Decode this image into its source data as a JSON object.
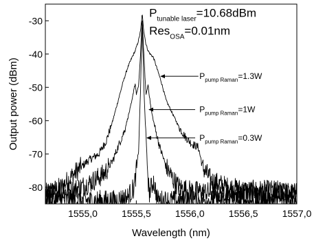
{
  "chart_data": {
    "type": "line",
    "title": "",
    "xlabel": "Wavelength (nm)",
    "ylabel": "Output power (dBm)",
    "xlim": [
      1554.65,
      1557.0
    ],
    "ylim": [
      -85,
      -25
    ],
    "x_ticks": [
      {
        "value": 1555.0,
        "label": "1555,0"
      },
      {
        "value": 1555.5,
        "label": "1555,5"
      },
      {
        "value": 1556.0,
        "label": "1556,0"
      },
      {
        "value": 1556.5,
        "label": "1556,5"
      },
      {
        "value": 1557.0,
        "label": "1557,0"
      }
    ],
    "y_ticks": [
      {
        "value": -30,
        "label": "-30"
      },
      {
        "value": -40,
        "label": "-40"
      },
      {
        "value": -50,
        "label": "-50"
      },
      {
        "value": -60,
        "label": "-60"
      },
      {
        "value": -70,
        "label": "-70"
      },
      {
        "value": -80,
        "label": "-80"
      }
    ],
    "grid": false,
    "series": [
      {
        "name": "P_pump Raman=1.3W",
        "x": [
          1554.65,
          1554.8,
          1554.95,
          1555.05,
          1555.15,
          1555.22,
          1555.28,
          1555.33,
          1555.38,
          1555.42,
          1555.46,
          1555.49,
          1555.52,
          1555.54,
          1555.555,
          1555.57,
          1555.59,
          1555.61,
          1555.63,
          1555.66,
          1555.69,
          1555.73,
          1555.78,
          1555.84,
          1555.9,
          1555.96,
          1556.02,
          1556.08,
          1556.12,
          1556.2,
          1556.35,
          1556.55,
          1556.8,
          1557.0
        ],
        "y": [
          -82,
          -80,
          -75,
          -72,
          -70,
          -66,
          -60,
          -54,
          -48,
          -44,
          -41,
          -39,
          -36,
          -33,
          -28,
          -33,
          -37,
          -39,
          -40,
          -41,
          -44,
          -48,
          -54,
          -58,
          -62,
          -65,
          -67,
          -68,
          -74,
          -78,
          -80,
          -81,
          -81,
          -82
        ]
      },
      {
        "name": "P_pump Raman=1W",
        "x": [
          1554.65,
          1554.9,
          1555.05,
          1555.2,
          1555.28,
          1555.34,
          1555.39,
          1555.43,
          1555.46,
          1555.48,
          1555.49,
          1555.5,
          1555.52,
          1555.54,
          1555.555,
          1555.57,
          1555.59,
          1555.6,
          1555.61,
          1555.62,
          1555.64,
          1555.68,
          1555.72,
          1555.78,
          1555.85,
          1555.9,
          1556.0,
          1556.3,
          1557.0
        ],
        "y": [
          -82,
          -81,
          -79,
          -76,
          -72,
          -67,
          -63,
          -58,
          -54,
          -50,
          -49,
          -52,
          -50,
          -40,
          -29,
          -40,
          -52,
          -51,
          -49,
          -52,
          -57,
          -63,
          -68,
          -74,
          -78,
          -80,
          -81,
          -82,
          -82
        ]
      },
      {
        "name": "P_pump Raman=0.3W",
        "x": [
          1554.65,
          1555.0,
          1555.3,
          1555.42,
          1555.48,
          1555.52,
          1555.54,
          1555.555,
          1555.57,
          1555.6,
          1555.62,
          1555.66,
          1555.7,
          1555.78,
          1555.9,
          1556.2,
          1557.0
        ],
        "y": [
          -84,
          -84,
          -84,
          -83,
          -80,
          -70,
          -50,
          -30,
          -50,
          -72,
          -82,
          -78,
          -84,
          -84,
          -84,
          -84,
          -84
        ]
      }
    ],
    "annotations": [
      {
        "id": "ann-1",
        "main": "P",
        "sub": "tunable laser",
        "tail": "=10.68dBm",
        "x": 1555.62,
        "y": -28.8,
        "size": "large"
      },
      {
        "id": "ann-2",
        "main": "Res",
        "sub": "OSA",
        "tail": "=0.01nm",
        "x": 1555.62,
        "y": -34.2,
        "size": "large"
      },
      {
        "id": "ann-3",
        "main": "P",
        "sub": "pump Raman",
        "tail": "=1.3W",
        "x": 1556.09,
        "y": -47.5,
        "size": "small",
        "arrow_from_x": 1556.08,
        "arrow_to_x": 1555.73
      },
      {
        "id": "ann-4",
        "main": "P",
        "sub": "pump Raman",
        "tail": "=1W",
        "x": 1556.09,
        "y": -57.5,
        "size": "small",
        "arrow_from_x": 1556.05,
        "arrow_to_x": 1555.62
      },
      {
        "id": "ann-5",
        "main": "P",
        "sub": "pump Raman",
        "tail": "=0.3W",
        "x": 1556.09,
        "y": -66.0,
        "size": "small",
        "arrow_from_x": 1556.05,
        "arrow_to_x": 1555.6
      }
    ]
  }
}
